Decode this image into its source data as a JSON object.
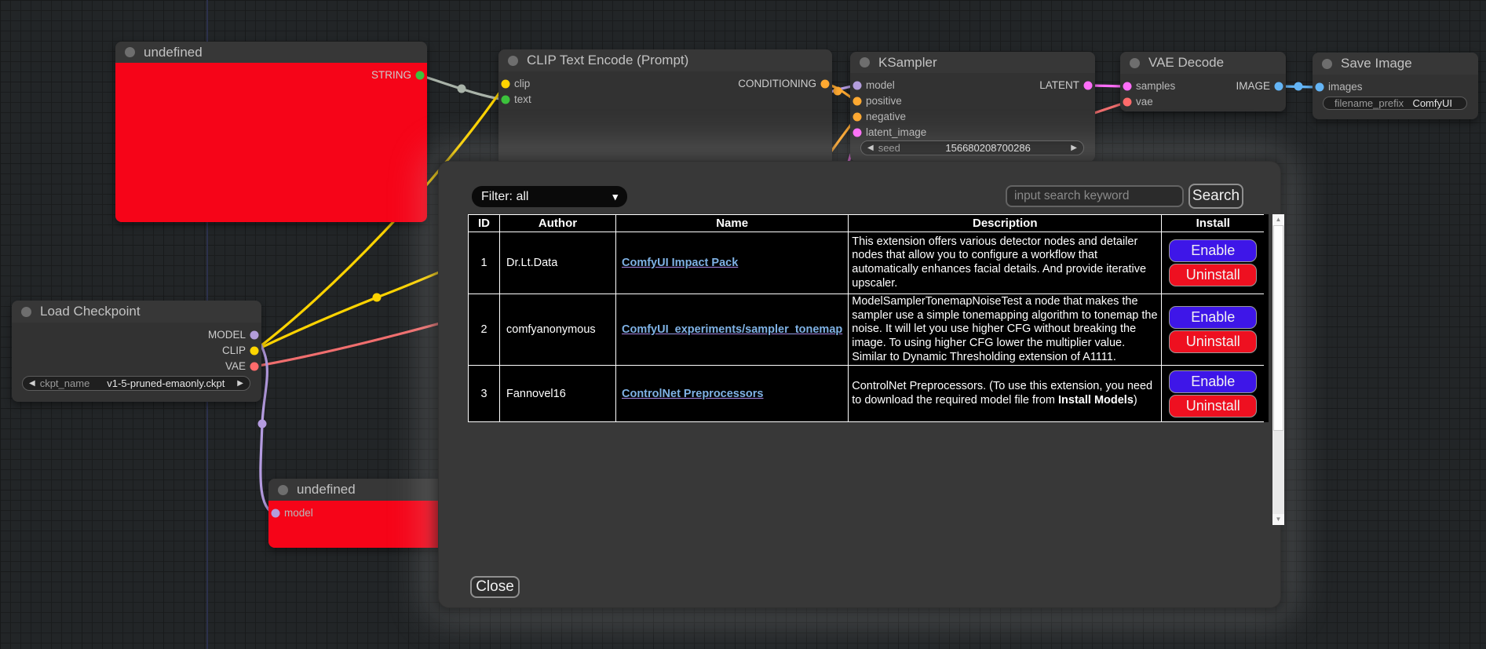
{
  "colors": {
    "canvas_bg": "#222527",
    "grid_line": "#1a1c1d",
    "node_header": "#373737",
    "node_body": "#323232",
    "node_error_body": "#f60418",
    "modal_bg": "#383838",
    "table_bg": "#000000",
    "table_border": "#ffffff",
    "link": "#7fb2e5",
    "enable_button": "#3e16e8",
    "uninstall_button": "#ee1020",
    "wire_string": "#a9b3a9",
    "wire_clip": "#fdd300",
    "wire_vae": "#f06e6e",
    "wire_model": "#b49be0",
    "wire_conditioning": "#ffa931",
    "wire_latent": "#ff6ef9",
    "wire_image": "#64b5f6"
  },
  "canvas": {
    "nodes": [
      {
        "id": "error-top",
        "title": "undefined",
        "error": true,
        "inputs": [],
        "outputs": [
          {
            "name": "STRING",
            "color": "#3cc23c"
          }
        ],
        "widgets": []
      },
      {
        "id": "clip-encode",
        "title": "CLIP Text Encode (Prompt)",
        "error": false,
        "inputs": [
          {
            "name": "clip",
            "color": "#ffd500"
          },
          {
            "name": "text",
            "color": "#3cc23c"
          }
        ],
        "outputs": [
          {
            "name": "CONDITIONING",
            "color": "#ffa931"
          }
        ],
        "widgets": []
      },
      {
        "id": "ksampler",
        "title": "KSampler",
        "error": false,
        "inputs": [
          {
            "name": "model",
            "color": "#b39ddb"
          },
          {
            "name": "positive",
            "color": "#ffa931"
          },
          {
            "name": "negative",
            "color": "#ffa931"
          },
          {
            "name": "latent_image",
            "color": "#ff6ef9"
          }
        ],
        "outputs": [
          {
            "name": "LATENT",
            "color": "#ff6ef9"
          }
        ],
        "widgets": [
          {
            "label": "seed",
            "value": "156680208700286",
            "arrows": true
          }
        ]
      },
      {
        "id": "vae-decode",
        "title": "VAE Decode",
        "error": false,
        "inputs": [
          {
            "name": "samples",
            "color": "#ff6ef9"
          },
          {
            "name": "vae",
            "color": "#ff6b6b"
          }
        ],
        "outputs": [
          {
            "name": "IMAGE",
            "color": "#64b5f6"
          }
        ],
        "widgets": []
      },
      {
        "id": "save-image",
        "title": "Save Image",
        "error": false,
        "inputs": [
          {
            "name": "images",
            "color": "#64b5f6"
          }
        ],
        "outputs": [],
        "widgets": [
          {
            "label": "filename_prefix",
            "value": "ComfyUI",
            "arrows": false
          }
        ]
      },
      {
        "id": "load-checkpoint",
        "title": "Load Checkpoint",
        "error": false,
        "inputs": [],
        "outputs": [
          {
            "name": "MODEL",
            "color": "#b39ddb"
          },
          {
            "name": "CLIP",
            "color": "#ffd500"
          },
          {
            "name": "VAE",
            "color": "#ff6b6b"
          }
        ],
        "widgets": [
          {
            "label": "ckpt_name",
            "value": "v1-5-pruned-emaonly.ckpt",
            "arrows": true
          }
        ]
      },
      {
        "id": "error-bottom",
        "title": "undefined",
        "error": true,
        "inputs": [
          {
            "name": "model",
            "color": "#b39ddb"
          }
        ],
        "outputs": [],
        "widgets": []
      }
    ]
  },
  "modal": {
    "filter_label": "Filter: all",
    "search": {
      "placeholder": "input search keyword",
      "button_label": "Search"
    },
    "close_label": "Close",
    "table": {
      "headers": [
        "ID",
        "Author",
        "Name",
        "Description",
        "Install"
      ],
      "button_labels": {
        "enable": "Enable",
        "uninstall": "Uninstall"
      },
      "rows": [
        {
          "id": "1",
          "author": "Dr.Lt.Data",
          "name": "ComfyUI Impact Pack",
          "description": [
            {
              "text": "This extension offers various detector nodes and detailer nodes that allow you to configure a workflow that automatically enhances facial details. And provide iterative upscaler.",
              "bold": false
            }
          ]
        },
        {
          "id": "2",
          "author": "comfyanonymous",
          "name": "ComfyUI_experiments/sampler_tonemap",
          "description": [
            {
              "text": "ModelSamplerTonemapNoiseTest a node that makes the sampler use a simple tonemapping algorithm to tonemap the noise. It will let you use higher CFG without breaking the image. To using higher CFG lower the multiplier value. Similar to Dynamic Thresholding extension of A1111.",
              "bold": false
            }
          ]
        },
        {
          "id": "3",
          "author": "Fannovel16",
          "name": "ControlNet Preprocessors",
          "description": [
            {
              "text": "ControlNet Preprocessors. (To use this extension, you need to download the required model file from ",
              "bold": false
            },
            {
              "text": "Install Models",
              "bold": true
            },
            {
              "text": ")",
              "bold": false
            }
          ]
        }
      ]
    }
  }
}
